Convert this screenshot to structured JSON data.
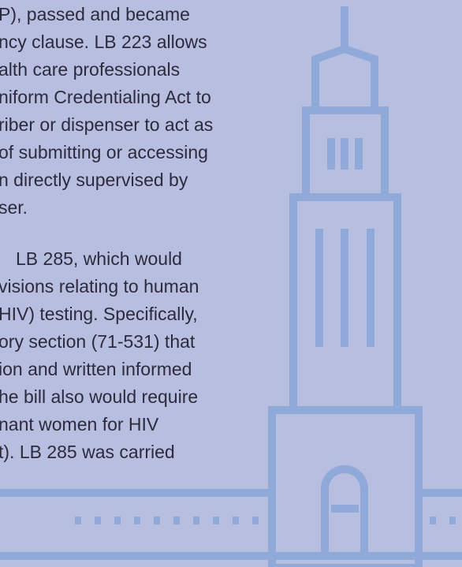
{
  "paragraphs": [
    {
      "lines": [
        "P), passed and became",
        "ncy clause. LB 223 allows",
        "alth care professionals",
        "niform Credentialing Act to",
        "riber or dispenser to act as",
        "of submitting or accessing",
        "n directly supervised by",
        "ser."
      ]
    },
    {
      "lines": [
        "LB 285, which would",
        "visions relating to human",
        "HIV) testing. Specifically,",
        "ory section (71-531) that",
        "ion and written informed",
        "he bill also would require",
        "nant women for HIV",
        "t). LB 285 was carried"
      ]
    }
  ]
}
